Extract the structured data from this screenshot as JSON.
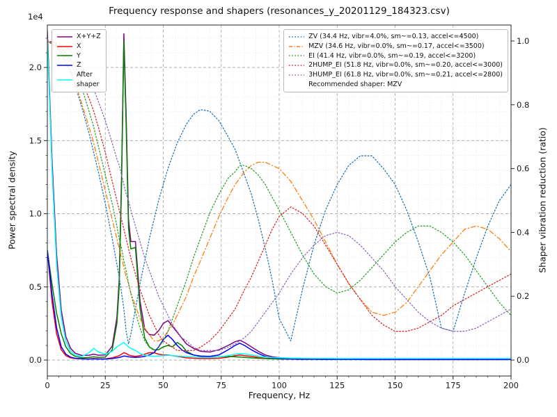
{
  "title": "Frequency response and shapers (resonances_y_20201129_184323.csv)",
  "axes": {
    "x": {
      "label": "Frequency, Hz",
      "min": 0,
      "max": 200,
      "minor_step": 5,
      "ticks": {
        "values": [
          0,
          25,
          50,
          75,
          100,
          125,
          150,
          175,
          200
        ],
        "labels": [
          "0",
          "25",
          "50",
          "75",
          "100",
          "125",
          "150",
          "175",
          "200"
        ]
      }
    },
    "y_left": {
      "label": "Power spectral density",
      "offset": "1e4",
      "lim": [
        -1090,
        22900
      ],
      "minor_step": 1000,
      "ticks": {
        "values": [
          0,
          5000,
          10000,
          15000,
          20000
        ],
        "labels": [
          "0.0",
          "0.5",
          "1.0",
          "1.5",
          "2.0"
        ]
      }
    },
    "y_right": {
      "label": "Shaper vibration reduction (ratio)",
      "lim": [
        -0.05,
        1.05
      ],
      "ticks": {
        "values": [
          0,
          0.2,
          0.4,
          0.6,
          0.8,
          1.0
        ],
        "labels": [
          "0.0",
          "0.2",
          "0.4",
          "0.6",
          "0.8",
          "1.0"
        ]
      }
    }
  },
  "legend_psd": [
    {
      "label": "X+Y+Z",
      "color": "#800080",
      "style": "solid"
    },
    {
      "label": "X",
      "color": "#ff0000",
      "style": "solid"
    },
    {
      "label": "Y",
      "color": "#008000",
      "style": "solid"
    },
    {
      "label": "Z",
      "color": "#0000ff",
      "style": "solid"
    },
    {
      "label": "After\nshaper",
      "color": "#00ffff",
      "style": "solid"
    }
  ],
  "legend_shapers": {
    "items": [
      {
        "label": "ZV (34.4 Hz, vibr=4.0%, sm~=0.13, accel<=4500)",
        "color": "#1f77b4",
        "style": "dotted"
      },
      {
        "label": "MZV (34.6 Hz, vibr=0.0%, sm~=0.17, accel<=3500)",
        "color": "#ff7f0e",
        "style": "dashdot"
      },
      {
        "label": "EI (41.4 Hz, vibr=0.0%, sm~=0.19, accel<=3200)",
        "color": "#2ca02c",
        "style": "dotted"
      },
      {
        "label": "2HUMP_EI (51.8 Hz, vibr=0.0%, sm~=0.20, accel<=3000)",
        "color": "#d62728",
        "style": "dotted"
      },
      {
        "label": "3HUMP_EI (61.8 Hz, vibr=0.0%, sm~=0.21, accel<=2800)",
        "color": "#9467bd",
        "style": "dotted"
      }
    ],
    "note": "Recommended shaper: MZV"
  },
  "chart_data": {
    "type": "line",
    "xlabel": "Frequency, Hz",
    "ylabel_left": "Power spectral density (1e4)",
    "ylabel_right": "Shaper vibration reduction (ratio)",
    "xlim": [
      0,
      200
    ],
    "grid": "major+minor",
    "x": [
      0,
      2,
      4,
      6,
      8,
      10,
      12,
      15,
      18,
      20,
      22,
      25,
      28,
      30,
      31,
      32,
      33,
      34,
      35,
      36,
      38,
      40,
      42,
      44,
      46,
      48,
      50,
      52,
      54,
      56,
      58,
      60,
      63,
      66,
      70,
      74,
      78,
      81,
      83,
      85,
      88,
      91,
      94,
      97,
      100,
      105,
      110,
      115,
      120,
      125,
      130,
      135,
      140,
      145,
      150,
      155,
      160,
      165,
      170,
      175,
      180,
      185,
      190,
      195,
      200
    ],
    "series": [
      {
        "name": "X+Y+Z",
        "axis": "left",
        "color": "#800080",
        "style": "solid",
        "values": [
          22500,
          13700,
          7200,
          3400,
          1600,
          800,
          470,
          310,
          330,
          400,
          330,
          350,
          950,
          2900,
          5500,
          12600,
          22300,
          16700,
          9600,
          8100,
          8100,
          4000,
          2100,
          1750,
          1700,
          2000,
          2500,
          2700,
          2300,
          1900,
          1500,
          1100,
          800,
          600,
          550,
          700,
          1000,
          1250,
          1350,
          1200,
          900,
          600,
          350,
          220,
          160,
          120,
          100,
          90,
          80,
          80,
          70,
          70,
          60,
          60,
          60,
          60,
          50,
          50,
          50,
          50,
          50,
          50,
          50,
          50,
          50
        ]
      },
      {
        "name": "X",
        "axis": "left",
        "color": "#ff0000",
        "style": "solid",
        "values": [
          7500,
          4000,
          1800,
          700,
          300,
          150,
          100,
          80,
          80,
          100,
          80,
          80,
          150,
          250,
          300,
          400,
          500,
          450,
          350,
          300,
          250,
          300,
          400,
          500,
          500,
          400,
          350,
          350,
          300,
          250,
          200,
          150,
          120,
          100,
          100,
          120,
          200,
          300,
          350,
          300,
          250,
          180,
          120,
          100,
          80,
          60,
          50,
          50,
          40,
          40,
          40,
          40,
          30,
          30,
          30,
          30,
          30,
          30,
          30,
          30,
          30,
          30,
          30,
          30,
          30
        ]
      },
      {
        "name": "Y",
        "axis": "left",
        "color": "#008000",
        "style": "solid",
        "values": [
          7500,
          5200,
          3200,
          1800,
          900,
          450,
          250,
          150,
          180,
          220,
          180,
          200,
          700,
          2500,
          5000,
          12000,
          21800,
          16000,
          9000,
          7600,
          7700,
          3500,
          1500,
          900,
          700,
          700,
          900,
          1000,
          900,
          1200,
          1000,
          600,
          350,
          250,
          200,
          220,
          250,
          220,
          200,
          180,
          150,
          120,
          100,
          80,
          70,
          60,
          50,
          50,
          40,
          40,
          40,
          40,
          30,
          30,
          30,
          30,
          30,
          30,
          30,
          30,
          30,
          30,
          30,
          30,
          30
        ]
      },
      {
        "name": "Z",
        "axis": "left",
        "color": "#0000ff",
        "style": "solid",
        "values": [
          7500,
          4500,
          2200,
          900,
          400,
          200,
          120,
          80,
          70,
          80,
          70,
          70,
          100,
          150,
          180,
          220,
          280,
          260,
          220,
          200,
          180,
          200,
          250,
          350,
          500,
          900,
          1400,
          1700,
          1400,
          1000,
          700,
          500,
          350,
          280,
          250,
          350,
          700,
          1000,
          1150,
          1000,
          700,
          450,
          250,
          150,
          100,
          80,
          60,
          60,
          50,
          50,
          50,
          40,
          40,
          40,
          40,
          40,
          40,
          40,
          40,
          40,
          40,
          40,
          40,
          40,
          40
        ]
      },
      {
        "name": "After shaper",
        "axis": "left",
        "color": "#00ffff",
        "style": "solid",
        "values": [
          22000,
          13000,
          6500,
          2900,
          1300,
          600,
          350,
          250,
          500,
          800,
          550,
          400,
          600,
          900,
          1000,
          1100,
          1200,
          1050,
          900,
          800,
          650,
          450,
          320,
          280,
          260,
          280,
          300,
          320,
          300,
          280,
          260,
          230,
          210,
          190,
          180,
          210,
          300,
          400,
          450,
          420,
          350,
          280,
          210,
          170,
          150,
          130,
          120,
          110,
          110,
          100,
          100,
          100,
          100,
          100,
          100,
          100,
          100,
          100,
          100,
          100,
          100,
          100,
          100,
          100,
          100
        ]
      },
      {
        "name": "ZV",
        "axis": "right",
        "color": "#1f77b4",
        "style": "dotted",
        "values": [
          1.0,
          0.99,
          0.98,
          0.96,
          0.93,
          0.9,
          0.86,
          0.79,
          0.71,
          0.65,
          0.59,
          0.49,
          0.38,
          0.3,
          0.26,
          0.21,
          0.16,
          0.09,
          0.05,
          0.08,
          0.16,
          0.24,
          0.31,
          0.38,
          0.44,
          0.5,
          0.55,
          0.6,
          0.64,
          0.68,
          0.71,
          0.74,
          0.77,
          0.785,
          0.78,
          0.75,
          0.7,
          0.66,
          0.62,
          0.58,
          0.52,
          0.44,
          0.35,
          0.25,
          0.13,
          0.06,
          0.22,
          0.36,
          0.47,
          0.55,
          0.61,
          0.64,
          0.64,
          0.6,
          0.55,
          0.47,
          0.37,
          0.26,
          0.1,
          0.09,
          0.21,
          0.32,
          0.42,
          0.5,
          0.55
        ]
      },
      {
        "name": "MZV",
        "axis": "right",
        "color": "#ff7f0e",
        "style": "dashdot",
        "values": [
          1.0,
          0.99,
          0.98,
          0.96,
          0.94,
          0.91,
          0.87,
          0.8,
          0.73,
          0.68,
          0.62,
          0.53,
          0.44,
          0.38,
          0.35,
          0.32,
          0.29,
          0.26,
          0.24,
          0.21,
          0.17,
          0.13,
          0.1,
          0.08,
          0.06,
          0.06,
          0.07,
          0.09,
          0.11,
          0.14,
          0.17,
          0.2,
          0.26,
          0.31,
          0.38,
          0.45,
          0.51,
          0.55,
          0.57,
          0.59,
          0.61,
          0.62,
          0.62,
          0.61,
          0.6,
          0.56,
          0.5,
          0.44,
          0.37,
          0.3,
          0.24,
          0.19,
          0.15,
          0.14,
          0.15,
          0.18,
          0.23,
          0.28,
          0.33,
          0.37,
          0.41,
          0.42,
          0.41,
          0.38,
          0.34
        ]
      },
      {
        "name": "EI",
        "axis": "right",
        "color": "#2ca02c",
        "style": "dotted",
        "values": [
          1.0,
          0.99,
          0.985,
          0.97,
          0.95,
          0.93,
          0.9,
          0.85,
          0.78,
          0.73,
          0.67,
          0.58,
          0.49,
          0.42,
          0.38,
          0.35,
          0.31,
          0.28,
          0.24,
          0.21,
          0.15,
          0.1,
          0.06,
          0.04,
          0.03,
          0.04,
          0.06,
          0.09,
          0.13,
          0.17,
          0.21,
          0.25,
          0.32,
          0.38,
          0.46,
          0.52,
          0.57,
          0.59,
          0.61,
          0.61,
          0.6,
          0.58,
          0.55,
          0.51,
          0.47,
          0.4,
          0.33,
          0.27,
          0.23,
          0.21,
          0.22,
          0.25,
          0.29,
          0.33,
          0.37,
          0.4,
          0.42,
          0.42,
          0.4,
          0.37,
          0.33,
          0.28,
          0.23,
          0.18,
          0.14
        ]
      },
      {
        "name": "2HUMP_EI",
        "axis": "right",
        "color": "#d62728",
        "style": "dotted",
        "values": [
          1.0,
          0.995,
          0.99,
          0.98,
          0.96,
          0.94,
          0.92,
          0.87,
          0.82,
          0.78,
          0.73,
          0.65,
          0.56,
          0.5,
          0.47,
          0.44,
          0.41,
          0.38,
          0.35,
          0.32,
          0.27,
          0.22,
          0.18,
          0.14,
          0.11,
          0.08,
          0.06,
          0.05,
          0.04,
          0.03,
          0.03,
          0.03,
          0.03,
          0.04,
          0.06,
          0.09,
          0.13,
          0.16,
          0.19,
          0.22,
          0.26,
          0.31,
          0.36,
          0.41,
          0.45,
          0.48,
          0.46,
          0.42,
          0.36,
          0.3,
          0.24,
          0.19,
          0.14,
          0.11,
          0.09,
          0.09,
          0.1,
          0.12,
          0.14,
          0.17,
          0.19,
          0.21,
          0.23,
          0.25,
          0.27
        ]
      },
      {
        "name": "3HUMP_EI",
        "axis": "right",
        "color": "#9467bd",
        "style": "dotted",
        "values": [
          1.0,
          0.998,
          0.995,
          0.99,
          0.98,
          0.97,
          0.95,
          0.92,
          0.88,
          0.85,
          0.81,
          0.75,
          0.68,
          0.63,
          0.61,
          0.58,
          0.55,
          0.52,
          0.5,
          0.47,
          0.42,
          0.37,
          0.32,
          0.28,
          0.24,
          0.2,
          0.17,
          0.14,
          0.11,
          0.09,
          0.07,
          0.06,
          0.04,
          0.03,
          0.03,
          0.03,
          0.04,
          0.05,
          0.06,
          0.07,
          0.09,
          0.12,
          0.15,
          0.18,
          0.21,
          0.27,
          0.32,
          0.36,
          0.39,
          0.4,
          0.39,
          0.36,
          0.32,
          0.28,
          0.23,
          0.19,
          0.15,
          0.12,
          0.1,
          0.09,
          0.09,
          0.1,
          0.12,
          0.14,
          0.16
        ]
      }
    ]
  }
}
